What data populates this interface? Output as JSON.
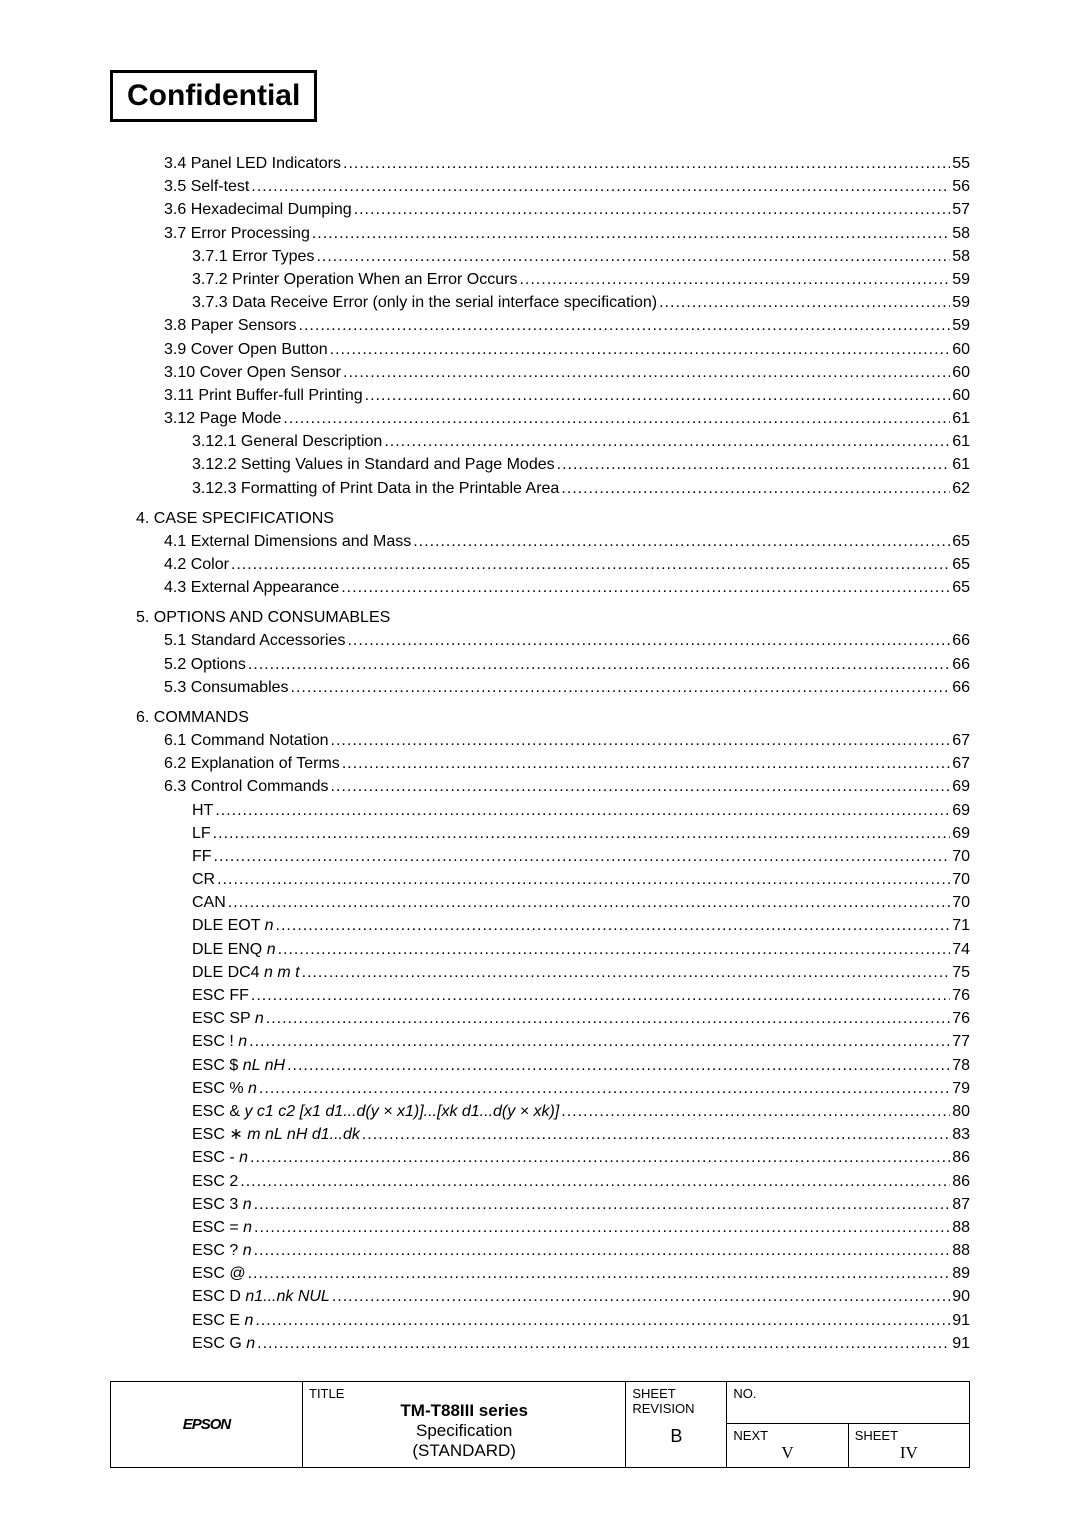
{
  "header": {
    "confidential": "Confidential"
  },
  "toc": {
    "group1": [
      {
        "label": "3.4 Panel LED Indicators",
        "page": "55",
        "indent": 1
      },
      {
        "label": "3.5 Self-test",
        "page": "56",
        "indent": 1
      },
      {
        "label": "3.6 Hexadecimal Dumping",
        "page": "57",
        "indent": 1
      },
      {
        "label": "3.7 Error Processing",
        "page": "58",
        "indent": 1
      },
      {
        "label": "3.7.1 Error Types",
        "page": "58",
        "indent": 2
      },
      {
        "label": "3.7.2 Printer Operation When an Error Occurs",
        "page": "59",
        "indent": 2
      },
      {
        "label": "3.7.3 Data Receive Error (only in the serial interface specification)",
        "page": "59",
        "indent": 2
      },
      {
        "label": "3.8 Paper Sensors",
        "page": "59",
        "indent": 1
      },
      {
        "label": "3.9 Cover Open Button",
        "page": "60",
        "indent": 1
      },
      {
        "label": "3.10 Cover Open Sensor",
        "page": "60",
        "indent": 1
      },
      {
        "label": "3.11 Print Buffer-full Printing",
        "page": "60",
        "indent": 1
      },
      {
        "label": "3.12 Page Mode",
        "page": "61",
        "indent": 1
      },
      {
        "label": "3.12.1 General Description",
        "page": "61",
        "indent": 2
      },
      {
        "label": "3.12.2 Setting Values in Standard and Page Modes",
        "page": "61",
        "indent": 2
      },
      {
        "label": "3.12.3 Formatting of Print Data in the Printable Area",
        "page": "62",
        "indent": 2
      }
    ],
    "section4": {
      "title": "4. CASE SPECIFICATIONS"
    },
    "group4": [
      {
        "label": "4.1 External Dimensions and Mass",
        "page": "65",
        "indent": 1
      },
      {
        "label": "4.2 Color",
        "page": "65",
        "indent": 1
      },
      {
        "label": "4.3 External Appearance",
        "page": "65",
        "indent": 1
      }
    ],
    "section5": {
      "title": "5. OPTIONS AND CONSUMABLES"
    },
    "group5": [
      {
        "label": "5.1 Standard Accessories",
        "page": "66",
        "indent": 1
      },
      {
        "label": "5.2 Options",
        "page": "66",
        "indent": 1
      },
      {
        "label": "5.3 Consumables",
        "page": "66",
        "indent": 1
      }
    ],
    "section6": {
      "title": "6. COMMANDS"
    },
    "group6": [
      {
        "label": "6.1 Command Notation",
        "page": "67",
        "indent": 1
      },
      {
        "label": "6.2 Explanation of Terms",
        "page": "67",
        "indent": 1
      },
      {
        "label": "6.3 Control Commands",
        "page": "69",
        "indent": 1
      },
      {
        "label": "HT",
        "page": "69",
        "indent": 2
      },
      {
        "label": "LF",
        "page": "69",
        "indent": 2
      },
      {
        "label": "FF",
        "page": "70",
        "indent": 2
      },
      {
        "label": "CR",
        "page": "70",
        "indent": 2
      },
      {
        "label": "CAN",
        "page": "70",
        "indent": 2
      },
      {
        "label_html": "DLE EOT <span class='italic'>n</span>",
        "page": "71",
        "indent": 2
      },
      {
        "label_html": "DLE ENQ <span class='italic'>n</span>",
        "page": "74",
        "indent": 2
      },
      {
        "label_html": "DLE DC4 <span class='italic'>n m t</span>",
        "page": "75",
        "indent": 2
      },
      {
        "label": "ESC FF",
        "page": "76",
        "indent": 2
      },
      {
        "label_html": "ESC SP <span class='italic'>n</span>",
        "page": "76",
        "indent": 2
      },
      {
        "label_html": "ESC ! <span class='italic'>n</span>",
        "page": "77",
        "indent": 2
      },
      {
        "label_html": "ESC $ <span class='italic'>nL nH</span>",
        "page": "78",
        "indent": 2
      },
      {
        "label_html": "ESC % <span class='italic'>n</span>",
        "page": "79",
        "indent": 2
      },
      {
        "label_html": "ESC &amp; <span class='italic'>y c1 c2 [x1 d1...d(y × x1)]...[xk d1...d(y × xk)]</span>",
        "page": "80",
        "indent": 2
      },
      {
        "label_html": "ESC ∗ <span class='italic'>m nL nH d1...dk</span>",
        "page": "83",
        "indent": 2
      },
      {
        "label_html": "ESC - <span class='italic'>n</span>",
        "page": "86",
        "indent": 2
      },
      {
        "label": "ESC 2",
        "page": "86",
        "indent": 2
      },
      {
        "label_html": "ESC 3 <span class='italic'>n</span>",
        "page": "87",
        "indent": 2
      },
      {
        "label_html": "ESC = <span class='italic'>n</span>",
        "page": "88",
        "indent": 2
      },
      {
        "label_html": "ESC ? <span class='italic'>n</span>",
        "page": "88",
        "indent": 2
      },
      {
        "label": "ESC @",
        "page": "89",
        "indent": 2
      },
      {
        "label_html": "ESC D <span class='italic'>n1...nk NUL</span>",
        "page": "90",
        "indent": 2
      },
      {
        "label_html": "ESC E <span class='italic'>n</span>",
        "page": "91",
        "indent": 2
      },
      {
        "label_html": "ESC G <span class='italic'>n</span>",
        "page": "91",
        "indent": 2
      }
    ]
  },
  "footer": {
    "logo": "EPSON",
    "title_label": "TITLE",
    "title_main": "TM-T88III series",
    "title_sub1": "Specification",
    "title_sub2": "(STANDARD)",
    "sheet_rev_label": "SHEET\nREVISION",
    "sheet_rev_value": "B",
    "no_label": "NO.",
    "next_label": "NEXT",
    "next_value": "V",
    "sheet_label": "SHEET",
    "sheet_value": "IV"
  }
}
